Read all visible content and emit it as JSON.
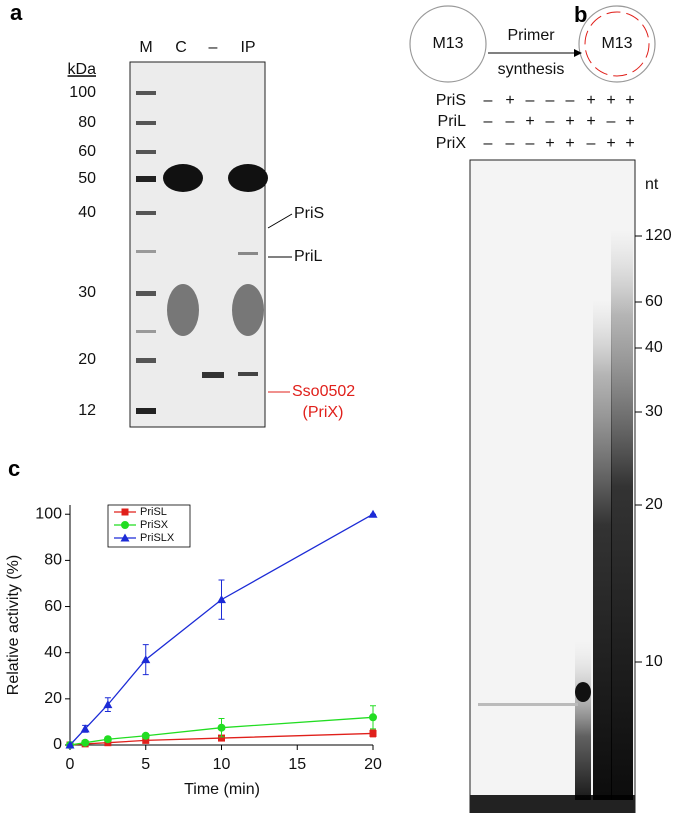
{
  "panel_a": {
    "label": "a",
    "unit": "kDa",
    "lanes": [
      "M",
      "C",
      "–",
      "IP"
    ],
    "markers": [
      "100",
      "80",
      "60",
      "50",
      "40",
      "30",
      "20",
      "12"
    ],
    "annotations": [
      "PriS",
      "PriL"
    ],
    "red_annotations": [
      "Sso0502",
      "(PriX)"
    ]
  },
  "panel_b": {
    "label": "b",
    "template_left": "M13",
    "arrow_top": "Primer",
    "arrow_bottom": "synthesis",
    "template_right": "M13",
    "rows": [
      {
        "label": "PriS",
        "signs": [
          "–",
          "+",
          "–",
          "–",
          "–",
          "+",
          "+",
          "+"
        ]
      },
      {
        "label": "PriL",
        "signs": [
          "–",
          "–",
          "+",
          "–",
          "+",
          "+",
          "–",
          "+"
        ]
      },
      {
        "label": "PriX",
        "signs": [
          "–",
          "–",
          "–",
          "+",
          "+",
          "–",
          "+",
          "+"
        ]
      }
    ],
    "unit": "nt",
    "markers": [
      "120",
      "60",
      "40",
      "30",
      "20",
      "10"
    ]
  },
  "chart_data": {
    "type": "line",
    "panel_label": "c",
    "x_label": "Time (min)",
    "y_label": "Relative activity (%)",
    "x": [
      0,
      1,
      2.5,
      5,
      10,
      20
    ],
    "series": [
      {
        "name": "PriSL",
        "color": "#e0201b",
        "marker": "square",
        "values": [
          0,
          0.5,
          1,
          2,
          3,
          5
        ],
        "errors": [
          0,
          0.3,
          0.5,
          0.5,
          1,
          1.5
        ]
      },
      {
        "name": "PriSX",
        "color": "#22dd22",
        "marker": "circle",
        "values": [
          0,
          1,
          2.5,
          4,
          7.5,
          12
        ],
        "errors": [
          0,
          0.5,
          1,
          1,
          4,
          5
        ]
      },
      {
        "name": "PriSLX",
        "color": "#1c2bd6",
        "marker": "triangle",
        "values": [
          0,
          7,
          17.5,
          37,
          63,
          100
        ],
        "errors": [
          0,
          1.5,
          3,
          6.5,
          8.5,
          0
        ]
      }
    ],
    "xlim": [
      0,
      20
    ],
    "ylim": [
      0,
      104
    ],
    "xticks": [
      0,
      5,
      10,
      15,
      20
    ],
    "yticks": [
      0,
      20,
      40,
      60,
      80,
      100
    ],
    "legend": "upper left"
  }
}
